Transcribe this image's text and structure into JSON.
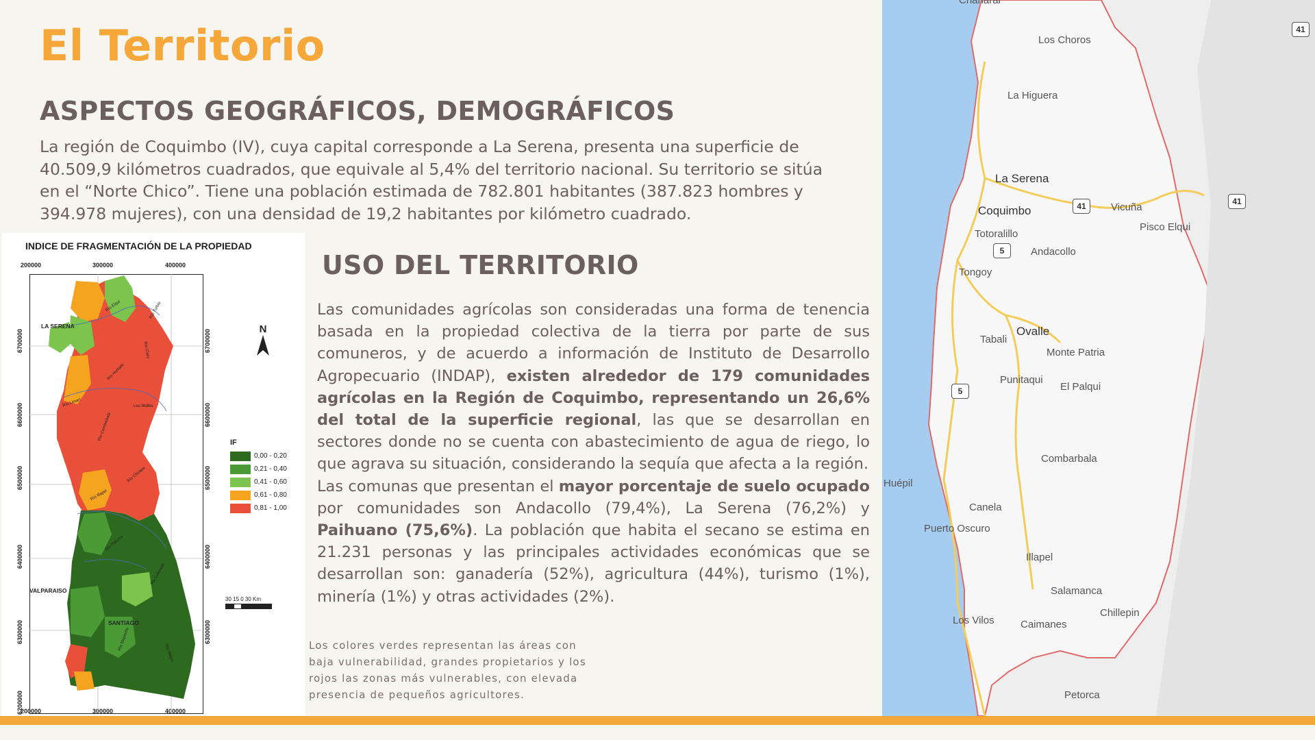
{
  "page": {
    "title": "El Territorio",
    "section1_heading": "ASPECTOS GEOGRÁFICOS, DEMOGRÁFICOS",
    "section1_text": "La región de Coquimbo (IV), cuya capital corresponde a La Serena, presenta una superficie de 40.509,9 kilómetros cuadrados, que equivale al 5,4% del territorio nacional. Su territorio se sitúa en el “Norte Chico”. Tiene una población estimada de 782.801 habitantes (387.823 hombres y 394.978 mujeres), con una densidad de 19,2 habitantes por kilómetro cuadrado.",
    "section2_heading": "USO DEL TERRITORIO",
    "p1_a": "Las comunidades agrícolas son consideradas una forma de tenencia basada en la propiedad colectiva de la tierra por parte de sus comuneros, y de acuerdo a información de Instituto de Desarrollo Agropecuario (INDAP), ",
    "p1_b": "existen alrededor de 179 comunidades agrícolas en la Región de Coquimbo, representando un 26,6% del total de la superficie regional",
    "p1_c": ", las que se desarrollan en sectores donde no se cuenta con abastecimiento de agua de riego, lo que agrava su situación, considerando la sequía que afecta a la región.",
    "p2_a": "Las comunas que presentan el ",
    "p2_b": "mayor porcentaje de suelo ocupado",
    "p2_c": " por comunidades son Andacollo (79,4%), La Serena (76,2%) y ",
    "p2_d": "Paihuano (75,6%)",
    "p2_e": ". La población que habita el secano se estima en 21.231 personas y las principales actividades económicas que se desarrollan son: ganadería (52%), agricultura (44%), turismo (1%), minería (1%) y otras actividades (2%).",
    "caption": "Los colores verdes representan las áreas con baja vulnerabilidad, grandes propietarios y los rojos las zonas más vulnerables, con elevada presencia de pequeños agricultores.",
    "accent_color": "#f5a73a",
    "text_color": "#6b5f60"
  },
  "frag_map": {
    "title": "INDICE DE FRAGMENTACIÓN DE LA PROPIEDAD",
    "x_ticks": [
      "200000",
      "300000",
      "400000"
    ],
    "y_ticks": [
      "6700000",
      "6600000",
      "6500000",
      "6400000",
      "6300000",
      "6200000"
    ],
    "places": [
      "LA SERENA",
      "VALPARAISO",
      "SANTIAGO"
    ],
    "rivers": [
      "Río Elqui",
      "Río Turbio",
      "Río Claro",
      "Río Hurtado",
      "Río Limarí",
      "Río Combarbalá",
      "Los Molles",
      "Río Choapa",
      "Río Illapel",
      "Río Petorca",
      "Río Colorado",
      "Río Maipo",
      "Río Mapocho"
    ],
    "north": "N",
    "legend_title": "IF",
    "legend": [
      {
        "label": "0,00 - 0,20",
        "color": "#2d6a1f"
      },
      {
        "label": "0,21 - 0,40",
        "color": "#4a9a35"
      },
      {
        "label": "0,41 - 0,60",
        "color": "#7cc44e"
      },
      {
        "label": "0,61 - 0,80",
        "color": "#f5a41f"
      },
      {
        "label": "0,81 - 1,00",
        "color": "#e8503a"
      }
    ],
    "scale_label": "30 15 0        30 Km"
  },
  "road_map": {
    "places": [
      {
        "name": "Chañaral"
      },
      {
        "name": "Los Choros"
      },
      {
        "name": "La Higuera"
      },
      {
        "name": "La Serena"
      },
      {
        "name": "Coquimbo"
      },
      {
        "name": "Vicuña"
      },
      {
        "name": "Pisco Elqui"
      },
      {
        "name": "Totoralillo"
      },
      {
        "name": "Andacollo"
      },
      {
        "name": "Tongoy"
      },
      {
        "name": "Ovalle"
      },
      {
        "name": "Tabali"
      },
      {
        "name": "Monte Patria"
      },
      {
        "name": "Punitaqui"
      },
      {
        "name": "El Palqui"
      },
      {
        "name": "Combarbala"
      },
      {
        "name": "Huépil"
      },
      {
        "name": "Canela"
      },
      {
        "name": "Puerto Oscuro"
      },
      {
        "name": "Illapel"
      },
      {
        "name": "Salamanca"
      },
      {
        "name": "Chillepin"
      },
      {
        "name": "Los Vilos"
      },
      {
        "name": "Caimanes"
      },
      {
        "name": "Petorca"
      }
    ],
    "shields": [
      "41",
      "41",
      "5",
      "5",
      "41"
    ]
  }
}
